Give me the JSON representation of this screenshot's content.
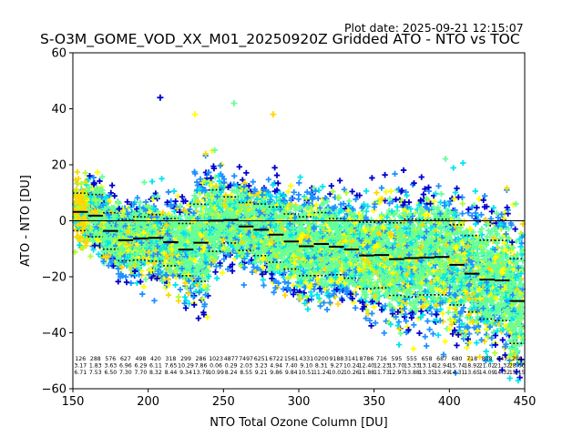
{
  "header": {
    "plot_date": "Plot date: 2025-09-21 12:15:07",
    "title": "S-O3M_GOME_VOD_XX_M01_20250920Z Gridded ATO - NTO vs TOC"
  },
  "chart_data": {
    "type": "scatter",
    "title": "S-O3M_GOME_VOD_XX_M01_20250920Z Gridded ATO - NTO vs TOC",
    "xlabel": "NTO Total Ozone Column [DU]",
    "ylabel": "ATO - NTO [DU]",
    "xlim": [
      150,
      450
    ],
    "ylim": [
      -60,
      60
    ],
    "xticks": [
      "150",
      "200",
      "250",
      "300",
      "350",
      "400",
      "450"
    ],
    "yticks": [
      "60",
      "40",
      "20",
      "0",
      "−20",
      "−40",
      "−60"
    ],
    "ytick_values": [
      60,
      40,
      20,
      0,
      -20,
      -40,
      -60
    ],
    "xtick_values": [
      150,
      200,
      250,
      300,
      350,
      400,
      450
    ],
    "marker": "+",
    "colormap": [
      "#0000cd",
      "#1e90ff",
      "#00e5ee",
      "#66ff99",
      "#adff2f",
      "#ffff00",
      "#ffd700",
      "#ffa500"
    ],
    "zero_line": 0,
    "bins": {
      "x_centers": [
        155,
        165,
        175,
        185,
        195,
        205,
        215,
        225,
        235,
        245,
        255,
        265,
        275,
        285,
        295,
        305,
        315,
        325,
        335,
        345,
        355,
        365,
        375,
        385,
        395,
        405,
        415,
        425,
        435,
        445
      ],
      "mean": [
        3.17,
        1.83,
        -3.63,
        -6.96,
        -6.29,
        -6.11,
        -7.65,
        -10.29,
        -7.86,
        0.06,
        0.29,
        -2.03,
        -3.23,
        -4.94,
        -7.4,
        -9.1,
        -8.31,
        -9.27,
        -10.24,
        -12.4,
        -12.23,
        -13.7,
        -13.33,
        -13.14,
        -12.94,
        -15.74,
        -18.92,
        -21.02,
        -21.32,
        -28.66
      ],
      "std": [
        6.71,
        7.53,
        6.5,
        7.3,
        7.7,
        8.32,
        8.44,
        9.34,
        13.79,
        10.99,
        8.24,
        8.55,
        9.21,
        9.86,
        9.84,
        10.51,
        11.24,
        10.02,
        10.26,
        11.88,
        11.73,
        12.97,
        13.88,
        13.35,
        13.49,
        14.31,
        13.65,
        14.09,
        14.32,
        15.15
      ],
      "count": [
        "126",
        "288",
        "576",
        "627",
        "498",
        "420",
        "318",
        "299",
        "286",
        "1023",
        "4877",
        "7497",
        "6251",
        "6722",
        "1561",
        "4331",
        "0200",
        "9188",
        "3141",
        "8786",
        "716",
        "595",
        "555",
        "658",
        "687",
        "680",
        "718",
        "808",
        "647",
        "299"
      ],
      "count_text": [
        "126",
        "288",
        "576",
        "627",
        "498",
        "420",
        "318",
        "299",
        "286",
        "1023",
        "4877",
        "7497",
        "6251",
        "6722",
        "1561",
        "4331",
        "0200",
        "9188",
        "3141",
        "8786",
        "716",
        "595",
        "555",
        "658",
        "687",
        "680",
        "718",
        "808",
        "647",
        "299"
      ],
      "mean_text": [
        "3.17",
        "1.83",
        "3.63",
        "6.96",
        "6.29",
        "6.11",
        "7.65",
        "10.29",
        "7.86",
        "0.06",
        "0.29",
        "2.03",
        "3.23",
        "4.94",
        "7.40",
        "9.10",
        "8.31",
        "9.27",
        "10.24",
        "12.40",
        "12.23",
        "13.70",
        "13.33",
        "13.14",
        "12.94",
        "15.74",
        "18.92",
        "21.02",
        "21.32",
        "28.66"
      ],
      "std_text": [
        "6.71",
        "7.53",
        "6.50",
        "7.30",
        "7.70",
        "8.32",
        "8.44",
        "9.34",
        "13.79",
        "10.99",
        "8.24",
        "8.55",
        "9.21",
        "9.86",
        "9.84",
        "10.51",
        "11.24",
        "10.02",
        "10.26",
        "11.88",
        "11.73",
        "12.97",
        "13.88",
        "13.35",
        "13.49",
        "14.31",
        "13.65",
        "14.09",
        "14.32",
        "15.15"
      ]
    },
    "outliers": [
      {
        "x": 208,
        "y": 44,
        "color": "#0000cd"
      },
      {
        "x": 257,
        "y": 42,
        "color": "#66ff99"
      },
      {
        "x": 231,
        "y": 38,
        "color": "#ffff00"
      },
      {
        "x": 283,
        "y": 38,
        "color": "#ffd700"
      }
    ],
    "grid": false,
    "legend": "none"
  }
}
